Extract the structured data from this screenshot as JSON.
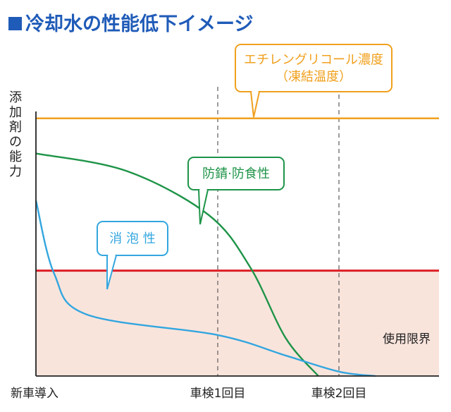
{
  "title": "冷却水の性能低下イメージ",
  "colors": {
    "title": "#1f5bb8",
    "glycol": "#f0a01e",
    "rust": "#1e9448",
    "foam": "#33a6df",
    "limit": "#dd1f26",
    "limit_fill": "#f9e4dc",
    "axis": "#222222",
    "guide": "#666666"
  },
  "chart_data": {
    "type": "line",
    "ylabel": "添加剤の能力",
    "x_ticks": [
      "新車導入",
      "車検1回目",
      "車検2回目"
    ],
    "limit_label": "使用限界",
    "series": [
      {
        "name": "エチレングリコール濃度（凍結温度）",
        "name_lines": [
          "エチレングリコール濃度",
          "（凍結温度）"
        ],
        "key": "glycol",
        "values": [
          [
            0,
            0.88
          ],
          [
            1,
            0.88
          ],
          [
            2,
            0.88
          ],
          [
            2.65,
            0.88
          ]
        ]
      },
      {
        "name": "防錆·防食性",
        "name_lines": [
          "防錆·防食性"
        ],
        "key": "rust",
        "values": [
          [
            0,
            0.76
          ],
          [
            0.5,
            0.7
          ],
          [
            0.95,
            0.55
          ],
          [
            1.27,
            0.37
          ],
          [
            1.56,
            0.13
          ],
          [
            1.83,
            0.0
          ]
        ]
      },
      {
        "name": "消泡性",
        "name_lines": [
          "消 泡 性"
        ],
        "key": "foam",
        "values": [
          [
            0,
            0.6
          ],
          [
            0.1,
            0.35
          ],
          [
            0.28,
            0.21
          ],
          [
            1.0,
            0.14
          ],
          [
            1.56,
            0.07
          ],
          [
            2.0,
            0.015
          ],
          [
            2.3,
            0.0
          ]
        ]
      }
    ],
    "limit_value": 0.36,
    "ylim": [
      0,
      1
    ],
    "xlim": [
      0,
      2.65
    ]
  }
}
